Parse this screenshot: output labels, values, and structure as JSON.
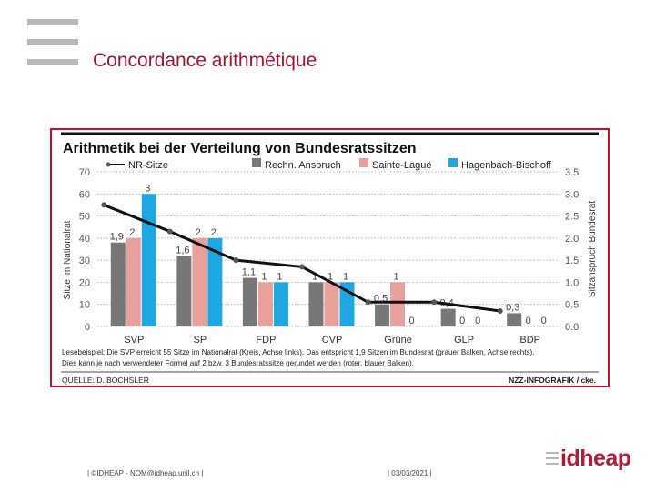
{
  "slide": {
    "title": "Concordance arithmétique",
    "footer_left": "| ©IDHEAP - NOM@idheap.unil.ch |",
    "footer_date": "| 03/03/2021 |",
    "logo_text": "idheap"
  },
  "chart_data": {
    "type": "bar",
    "title": "Arithmetik bei der Verteilung von Bundesratssitzen",
    "categories": [
      "SVP",
      "SP",
      "FDP",
      "CVP",
      "Grüne",
      "GLP",
      "BDP"
    ],
    "ylabel": "Sitze im Nationalrat",
    "y2label": "Sitzanspruch Bundesrat",
    "ylim": [
      0,
      70
    ],
    "y2lim": [
      0,
      3.5
    ],
    "yticks": [
      "0",
      "10",
      "20",
      "30",
      "40",
      "50",
      "60",
      "70"
    ],
    "y2ticks": [
      "0.0",
      "0.5",
      "1.0",
      "1.5",
      "2.0",
      "2.5",
      "3.0",
      "3.5"
    ],
    "legend": {
      "line": "NR-Sitze",
      "rechn": "Rechn. Anspruch",
      "sainte": "Sainte-Laguë",
      "hagen": "Hagenbach-Bischoff"
    },
    "series": [
      {
        "name": "Rechn. Anspruch",
        "color": "#777777",
        "values": [
          1.9,
          1.6,
          1.1,
          1.0,
          0.5,
          0.4,
          0.3
        ],
        "labels": [
          "1,9",
          "1,6",
          "1,1",
          "1",
          "0,5",
          "0,4",
          "0,3"
        ]
      },
      {
        "name": "Sainte-Laguë",
        "color": "#e8a09c",
        "values": [
          2,
          2,
          1,
          1,
          1,
          0,
          0
        ],
        "labels": [
          "2",
          "2",
          "1",
          "1",
          "1",
          "0",
          "0"
        ]
      },
      {
        "name": "Hagenbach-Bischoff",
        "color": "#1ea7e0",
        "values": [
          3,
          2,
          1,
          1,
          0,
          0,
          0
        ],
        "labels": [
          "3",
          "2",
          "1",
          "1",
          "0",
          "0",
          "0"
        ]
      }
    ],
    "line": {
      "name": "NR-Sitze",
      "values": [
        55,
        43,
        30,
        27,
        11,
        11,
        7
      ]
    },
    "note_line1": "Lesebeispiel: Die SVP erreicht 55 Sitze im Nationalrat (Kreis, Achse links). Das entspricht 1,9 Sitzen im Bundesrat (grauer Balken, Achse rechts).",
    "note_line2": "Dies kann je nach verwendeter Formel auf 2 bzw. 3 Bundesratssitze gerundet werden (roter, blauer Balken).",
    "source": "QUELLE: D. BOCHSLER",
    "credit": "NZZ-INFOGRAFIK / cke."
  }
}
